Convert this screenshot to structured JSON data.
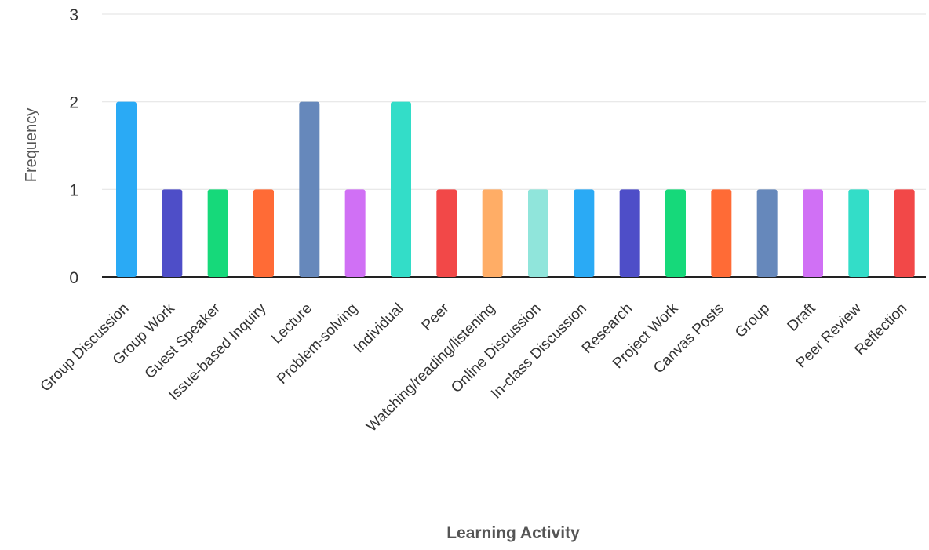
{
  "chart_data": {
    "type": "bar",
    "title": "",
    "xlabel": "Learning Activity",
    "ylabel": "Frequency",
    "ylim": [
      0,
      3
    ],
    "yticks": [
      0,
      1,
      2,
      3
    ],
    "grid": true,
    "legend": "none",
    "categories": [
      "Group Discussion",
      "Group Work",
      "Guest Speaker",
      "Issue-based Inquiry",
      "Lecture",
      "Problem-solving",
      "Individual",
      "Peer",
      "Watching/reading/listening",
      "Online Discussion",
      "In-class Discussion",
      "Research",
      "Project Work",
      "Canvas Posts",
      "Group",
      "Draft",
      "Peer Review",
      "Reflection"
    ],
    "values": [
      2,
      1,
      1,
      1,
      2,
      1,
      2,
      1,
      1,
      1,
      1,
      1,
      1,
      1,
      1,
      1,
      1,
      1
    ],
    "colors": [
      "#2AAAF5",
      "#4E4EC8",
      "#16D97A",
      "#FF6B36",
      "#6688BB",
      "#D070F5",
      "#33DDC8",
      "#F24848",
      "#FFAD66",
      "#90E5DB",
      "#2AAAF5",
      "#4E4EC8",
      "#16D97A",
      "#FF6B36",
      "#6688BB",
      "#D070F5",
      "#33DDC8",
      "#F24848"
    ],
    "gridline_color": "#e6e6e6",
    "baseline_color": "#222222"
  }
}
